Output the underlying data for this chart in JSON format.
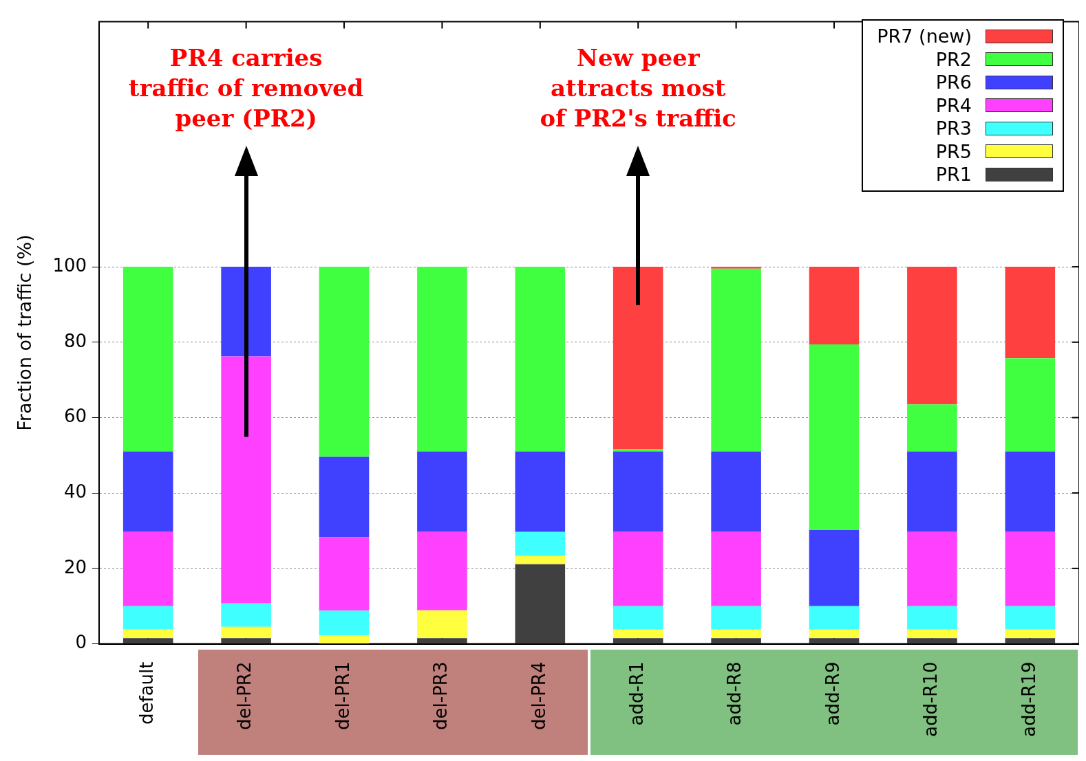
{
  "chart_data": {
    "type": "bar",
    "stacked": true,
    "ylabel": "Fraction of traffic (%)",
    "categories": [
      "default",
      "del-PR2",
      "del-PR1",
      "del-PR3",
      "del-PR4",
      "add-R1",
      "add-R8",
      "add-R9",
      "add-R10",
      "add-R19"
    ],
    "series": [
      {
        "name": "PR1",
        "color": "#404040",
        "values": [
          1.5,
          1.5,
          0,
          1.5,
          21.1,
          1.5,
          1.5,
          1.5,
          1.5,
          1.5
        ]
      },
      {
        "name": "PR5",
        "color": "#ffff40",
        "values": [
          2.3,
          3,
          2.3,
          7.4,
          2.2,
          2.3,
          2.3,
          2.3,
          2.3,
          2.3
        ]
      },
      {
        "name": "PR3",
        "color": "#40ffff",
        "values": [
          6.2,
          6.2,
          6.5,
          0,
          6.4,
          6.2,
          6.2,
          6.2,
          6.2,
          6.2
        ]
      },
      {
        "name": "PR4",
        "color": "#ff40ff",
        "values": [
          19.7,
          65.5,
          19.5,
          20.8,
          0,
          19.7,
          19.7,
          0,
          19.7,
          19.7
        ]
      },
      {
        "name": "PR6",
        "color": "#4040ff",
        "values": [
          21.3,
          23.8,
          21.3,
          21.3,
          21.3,
          21.3,
          21.3,
          20.2,
          21.3,
          21.3
        ]
      },
      {
        "name": "PR2",
        "color": "#40ff40",
        "values": [
          49,
          0,
          50.4,
          49,
          49,
          0.7,
          48.5,
          49.2,
          12.5,
          24.7
        ]
      },
      {
        "name": "PR7 (new)",
        "color": "#ff4040",
        "values": [
          0,
          0,
          0,
          0,
          0,
          48.3,
          0.5,
          20.6,
          36.5,
          24.3
        ]
      }
    ],
    "ylim": [
      0,
      165
    ],
    "yticks": [
      0,
      20,
      40,
      60,
      80,
      100
    ],
    "grid": "y",
    "legend": "top right",
    "annotations": [
      "PR4 carries\ntraffic of removed\npeer (PR2)",
      "New peer\nattracts most\nof PR2's traffic"
    ]
  }
}
